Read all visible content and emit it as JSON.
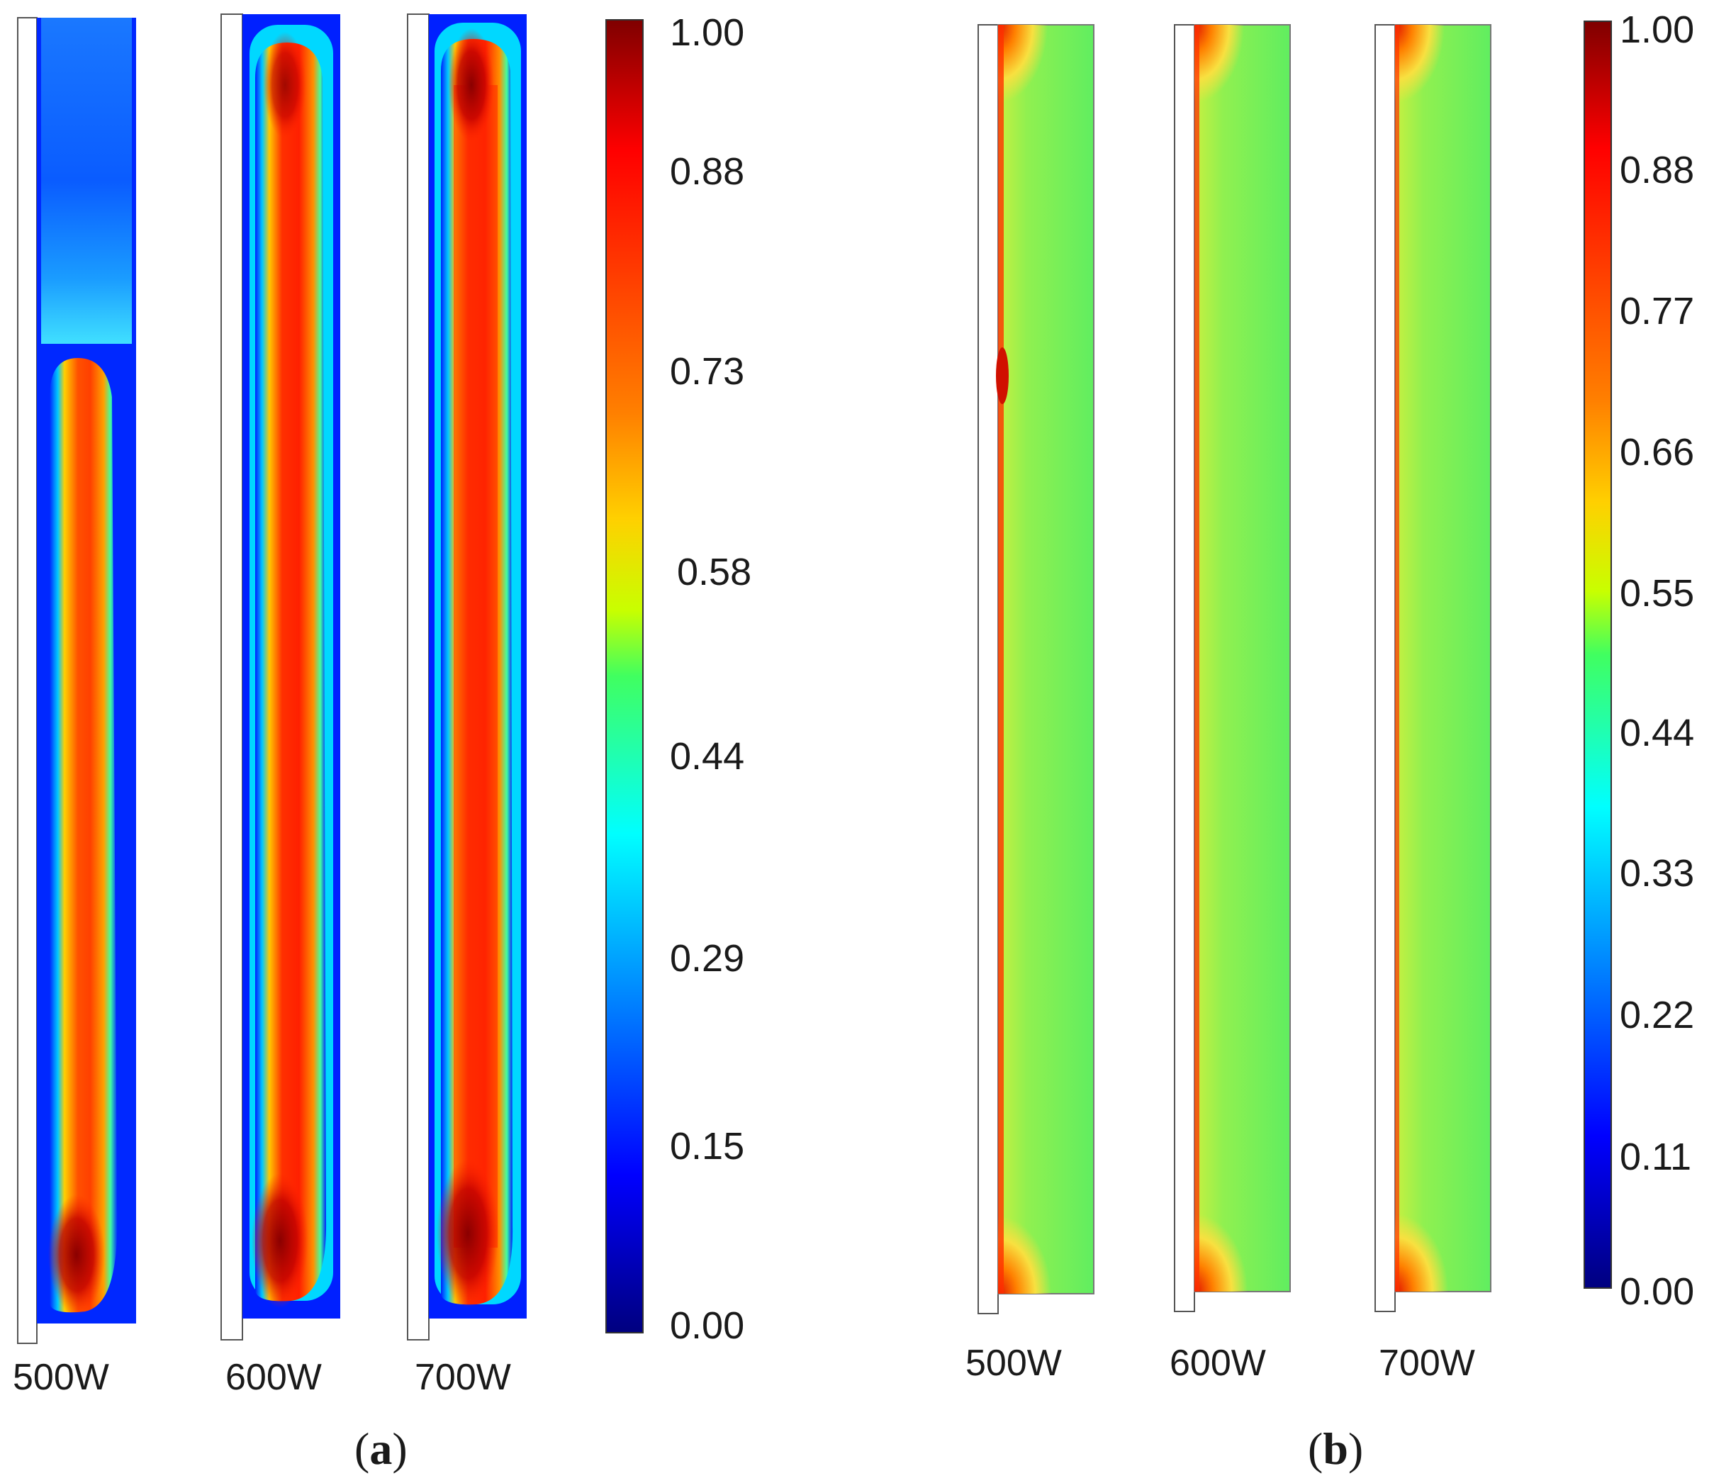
{
  "figure": {
    "panel_a": {
      "label_open": "(",
      "label_letter": "a",
      "label_close": ")",
      "columns": [
        "500W",
        "600W",
        "700W"
      ],
      "colorbar_ticks": [
        "1.00",
        "0.88",
        "0.73",
        "0.58",
        "0.44",
        "0.29",
        "0.15",
        "0.00"
      ]
    },
    "panel_b": {
      "label_open": "(",
      "label_letter": "b",
      "label_close": ")",
      "columns": [
        "500W",
        "600W",
        "700W"
      ],
      "colorbar_ticks": [
        "1.00",
        "0.88",
        "0.77",
        "0.66",
        "0.55",
        "0.44",
        "0.33",
        "0.22",
        "0.11",
        "0.00"
      ]
    },
    "colormap": [
      "#00007f",
      "#0000ff",
      "#0080ff",
      "#00ffff",
      "#30ff80",
      "#c8ff00",
      "#ffc000",
      "#ff6000",
      "#ff0000",
      "#7f0000"
    ]
  }
}
